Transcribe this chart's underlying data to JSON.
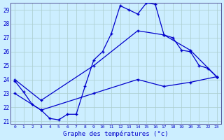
{
  "title": "Graphe des températures (°c)",
  "bg_color": "#cceeff",
  "line_color": "#0000cc",
  "line1_x": [
    0,
    1,
    2,
    3,
    4,
    5,
    6,
    7,
    8,
    9,
    10,
    11,
    12,
    13,
    14,
    15,
    16,
    17,
    18,
    19,
    20,
    21,
    22,
    23
  ],
  "line1_y": [
    23.9,
    23.1,
    22.2,
    21.8,
    21.2,
    21.1,
    21.5,
    21.5,
    23.5,
    25.4,
    26.0,
    27.3,
    29.3,
    29.0,
    28.7,
    29.5,
    29.4,
    27.2,
    27.0,
    26.1,
    26.0,
    25.0,
    24.8,
    24.2
  ],
  "line2_x": [
    0,
    3,
    9,
    14,
    17,
    20,
    23
  ],
  "line2_y": [
    24.0,
    22.5,
    25.0,
    27.5,
    27.2,
    26.1,
    24.2
  ],
  "line3_x": [
    0,
    3,
    9,
    14,
    17,
    20,
    23
  ],
  "line3_y": [
    23.0,
    21.8,
    23.0,
    24.0,
    23.5,
    23.8,
    24.2
  ],
  "ylim_min": 21,
  "ylim_max": 29,
  "yticks": [
    21,
    22,
    23,
    24,
    25,
    26,
    27,
    28,
    29
  ],
  "xticks": [
    0,
    1,
    2,
    3,
    4,
    5,
    6,
    7,
    8,
    9,
    10,
    11,
    12,
    13,
    14,
    15,
    16,
    17,
    18,
    19,
    20,
    21,
    22,
    23
  ],
  "xtick_labels": [
    "0",
    "1",
    "2",
    "3",
    "4",
    "5",
    "6",
    "7",
    "8",
    "9",
    "10",
    "11",
    "12",
    "13",
    "14",
    "15",
    "16",
    "17",
    "18",
    "19",
    "20",
    "21",
    "22",
    "23"
  ]
}
